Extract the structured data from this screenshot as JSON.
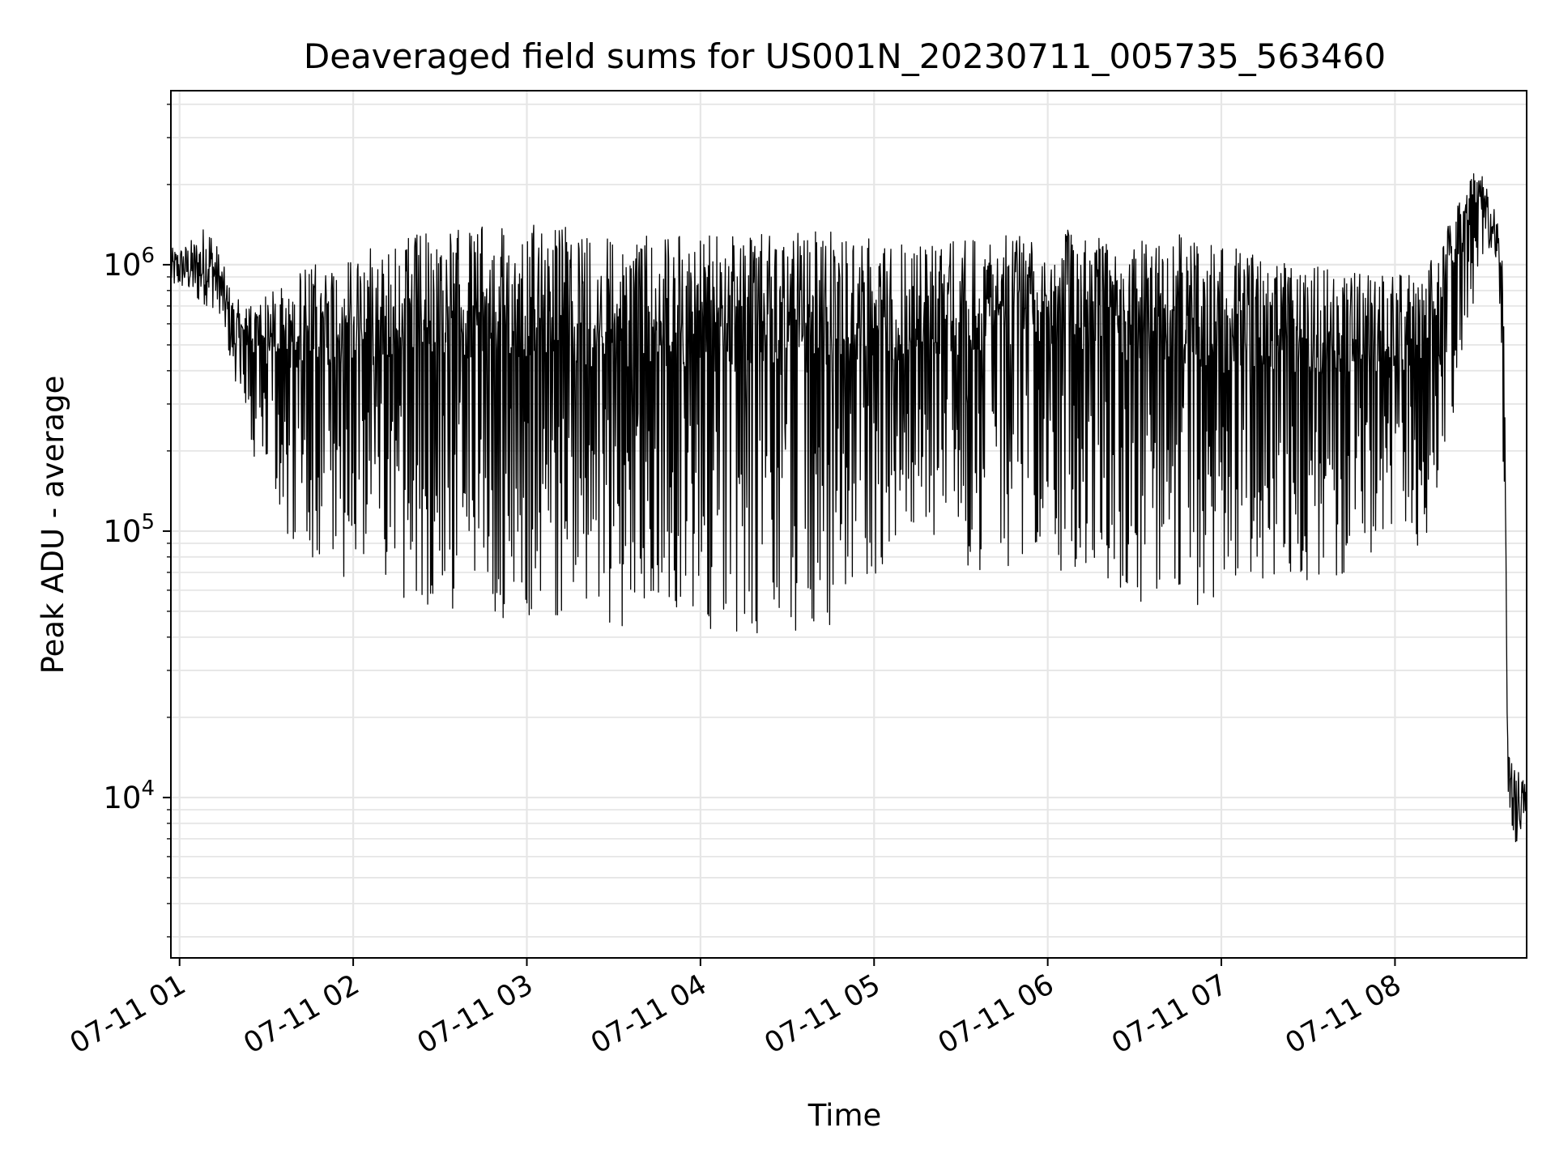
{
  "chart_data": {
    "type": "line",
    "title": "Deaveraged field sums for US001N_20230711_005735_563460",
    "xlabel": "Time",
    "ylabel": "Peak ADU - average",
    "yscale": "log",
    "ylim": [
      2500,
      4500000
    ],
    "xlim": [
      "2023-07-11T00:57:00",
      "2023-07-11T08:45:30"
    ],
    "grid": true,
    "line_color": "#000000",
    "grid_color": "#e6e6e6",
    "x_ticks": [
      {
        "value": "2023-07-11T01:00:00",
        "label": "07-11 01"
      },
      {
        "value": "2023-07-11T02:00:00",
        "label": "07-11 02"
      },
      {
        "value": "2023-07-11T03:00:00",
        "label": "07-11 03"
      },
      {
        "value": "2023-07-11T04:00:00",
        "label": "07-11 04"
      },
      {
        "value": "2023-07-11T05:00:00",
        "label": "07-11 05"
      },
      {
        "value": "2023-07-11T06:00:00",
        "label": "07-11 06"
      },
      {
        "value": "2023-07-11T07:00:00",
        "label": "07-11 07"
      },
      {
        "value": "2023-07-11T08:00:00",
        "label": "07-11 08"
      }
    ],
    "y_ticks": [
      {
        "value": 10000,
        "base": "10",
        "exp": "4"
      },
      {
        "value": 100000,
        "base": "10",
        "exp": "5"
      },
      {
        "value": 1000000,
        "base": "10",
        "exp": "6"
      }
    ],
    "series": [
      {
        "x": [
          "2023-07-11T00:57:00",
          "2023-07-11T01:02:00",
          "2023-07-11T01:06:00",
          "2023-07-11T01:10:00",
          "2023-07-11T01:14:00",
          "2023-07-11T01:18:00",
          "2023-07-11T01:22:00",
          "2023-07-11T01:27:00",
          "2023-07-11T01:32:00",
          "2023-07-11T01:38:00",
          "2023-07-11T01:45:00",
          "2023-07-11T01:52:00",
          "2023-07-11T02:00:00",
          "2023-07-11T02:10:00",
          "2023-07-11T02:20:00",
          "2023-07-11T02:30:00",
          "2023-07-11T02:45:00",
          "2023-07-11T03:00:00",
          "2023-07-11T03:15:00",
          "2023-07-11T03:30:00",
          "2023-07-11T03:45:00",
          "2023-07-11T04:00:00",
          "2023-07-11T04:15:00",
          "2023-07-11T04:30:00",
          "2023-07-11T04:45:00",
          "2023-07-11T05:00:00",
          "2023-07-11T05:15:00",
          "2023-07-11T05:30:00",
          "2023-07-11T05:45:00",
          "2023-07-11T06:00:00",
          "2023-07-11T06:15:00",
          "2023-07-11T06:30:00",
          "2023-07-11T06:45:00",
          "2023-07-11T07:00:00",
          "2023-07-11T07:15:00",
          "2023-07-11T07:30:00",
          "2023-07-11T07:45:00",
          "2023-07-11T08:00:00",
          "2023-07-11T08:10:00",
          "2023-07-11T08:18:00",
          "2023-07-11T08:24:00",
          "2023-07-11T08:28:00",
          "2023-07-11T08:30:00",
          "2023-07-11T08:33:00",
          "2023-07-11T08:36:00",
          "2023-07-11T08:37:30",
          "2023-07-11T08:39:00",
          "2023-07-11T08:40:30",
          "2023-07-11T08:42:00",
          "2023-07-11T08:45:30"
        ],
        "upper": [
          1150000,
          1200000,
          1300000,
          1500000,
          1100000,
          800000,
          700000,
          750000,
          800000,
          900000,
          1000000,
          1050000,
          1100000,
          1200000,
          1300000,
          1350000,
          1400000,
          1450000,
          1400000,
          1350000,
          1350000,
          1300000,
          1300000,
          1300000,
          1350000,
          1250000,
          1200000,
          1250000,
          1300000,
          1350000,
          1350000,
          1300000,
          1300000,
          1250000,
          1050000,
          1000000,
          950000,
          900000,
          1000000,
          1400000,
          1900000,
          2400000,
          2200000,
          1800000,
          1500000,
          1000000,
          15000,
          13500,
          13500,
          11000
        ],
        "lower": [
          800000,
          800000,
          700000,
          700000,
          650000,
          400000,
          300000,
          150000,
          120000,
          90000,
          80000,
          70000,
          65000,
          60000,
          55000,
          50000,
          48000,
          46000,
          45000,
          44000,
          43000,
          42000,
          40000,
          38000,
          42000,
          60000,
          65000,
          70000,
          72000,
          70000,
          65000,
          55000,
          50000,
          45000,
          60000,
          65000,
          70000,
          75000,
          90000,
          200000,
          400000,
          700000,
          900000,
          1200000,
          800000,
          150000,
          9000,
          5500,
          6500,
          9000
        ]
      }
    ]
  }
}
